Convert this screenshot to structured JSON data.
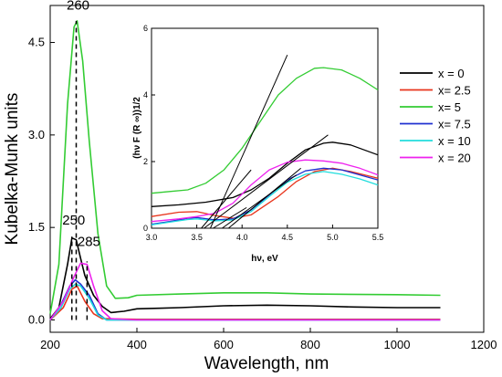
{
  "chart_data": [
    {
      "type": "line",
      "xlabel": "Wavelength, nm",
      "ylabel": "Kubelka-Munk units",
      "xlim": [
        200,
        1200
      ],
      "ylim": [
        -0.2,
        5.1
      ],
      "x_ticks": [
        "200",
        "400",
        "600",
        "800",
        "1000",
        "1200"
      ],
      "y_ticks": [
        "0.0",
        "1.5",
        "3.0",
        "4.5"
      ],
      "x_tick_values": [
        200,
        400,
        600,
        800,
        1000,
        1200
      ],
      "y_tick_values": [
        0,
        1.5,
        3.0,
        4.5
      ],
      "annotations": [
        {
          "text": "260",
          "x": 260,
          "y": 5.03,
          "line_from": 0,
          "line_to": 4.85
        },
        {
          "text": "250",
          "x": 250,
          "y": 1.55,
          "line_from": 0,
          "line_to": 1.35
        },
        {
          "text": "285",
          "x": 285,
          "y": 1.2,
          "line_from": 0,
          "line_to": 0.95
        }
      ],
      "legend": [
        "x = 0",
        "x= 2.5",
        "x= 5",
        "x= 7.5",
        "x = 10",
        "x = 20"
      ],
      "series": [
        {
          "name": "x = 0",
          "color": "#000000",
          "points": [
            [
              200,
              0.02
            ],
            [
              220,
              0.2
            ],
            [
              240,
              0.9
            ],
            [
              250,
              1.33
            ],
            [
              260,
              1.3
            ],
            [
              270,
              1.0
            ],
            [
              280,
              0.72
            ],
            [
              300,
              0.4
            ],
            [
              320,
              0.22
            ],
            [
              340,
              0.12
            ],
            [
              370,
              0.14
            ],
            [
              400,
              0.18
            ],
            [
              450,
              0.19
            ],
            [
              500,
              0.2
            ],
            [
              600,
              0.23
            ],
            [
              700,
              0.24
            ],
            [
              800,
              0.23
            ],
            [
              900,
              0.21
            ],
            [
              1000,
              0.2
            ],
            [
              1100,
              0.2
            ]
          ]
        },
        {
          "name": "x= 2.5",
          "color": "#e8341c",
          "points": [
            [
              200,
              0.0
            ],
            [
              230,
              0.2
            ],
            [
              250,
              0.5
            ],
            [
              262,
              0.55
            ],
            [
              280,
              0.3
            ],
            [
              300,
              0.1
            ],
            [
              320,
              0.02
            ],
            [
              400,
              0.01
            ],
            [
              800,
              0.01
            ],
            [
              1100,
              0.01
            ]
          ]
        },
        {
          "name": "x= 5",
          "color": "#33cc33",
          "points": [
            [
              200,
              0.1
            ],
            [
              220,
              0.9
            ],
            [
              240,
              3.5
            ],
            [
              255,
              4.75
            ],
            [
              262,
              4.85
            ],
            [
              275,
              4.2
            ],
            [
              290,
              2.9
            ],
            [
              310,
              1.4
            ],
            [
              330,
              0.55
            ],
            [
              350,
              0.35
            ],
            [
              380,
              0.36
            ],
            [
              400,
              0.4
            ],
            [
              500,
              0.42
            ],
            [
              600,
              0.44
            ],
            [
              700,
              0.44
            ],
            [
              800,
              0.42
            ],
            [
              1000,
              0.41
            ],
            [
              1100,
              0.4
            ]
          ]
        },
        {
          "name": "x= 7.5",
          "color": "#2030d0",
          "points": [
            [
              200,
              0.0
            ],
            [
              225,
              0.25
            ],
            [
              245,
              0.55
            ],
            [
              258,
              0.65
            ],
            [
              270,
              0.58
            ],
            [
              290,
              0.4
            ],
            [
              310,
              0.1
            ],
            [
              330,
              0.0
            ],
            [
              400,
              0.0
            ],
            [
              800,
              0.0
            ],
            [
              1100,
              0.0
            ]
          ]
        },
        {
          "name": "x = 10",
          "color": "#22dddd",
          "points": [
            [
              200,
              0.0
            ],
            [
              225,
              0.2
            ],
            [
              245,
              0.5
            ],
            [
              258,
              0.58
            ],
            [
              270,
              0.55
            ],
            [
              290,
              0.35
            ],
            [
              310,
              0.08
            ],
            [
              330,
              0.0
            ],
            [
              400,
              0.0
            ],
            [
              800,
              0.0
            ],
            [
              1100,
              0.0
            ]
          ]
        },
        {
          "name": "x = 20",
          "color": "#ee22ee",
          "points": [
            [
              200,
              0.0
            ],
            [
              230,
              0.3
            ],
            [
              255,
              0.7
            ],
            [
              270,
              0.92
            ],
            [
              285,
              0.9
            ],
            [
              300,
              0.55
            ],
            [
              320,
              0.15
            ],
            [
              340,
              0.02
            ],
            [
              400,
              0.0
            ],
            [
              800,
              0.0
            ],
            [
              1100,
              0.0
            ]
          ]
        }
      ]
    },
    {
      "type": "line",
      "title": "",
      "xlabel": "hν, eV",
      "ylabel": "(hν F (R ∞))1/2",
      "xlim": [
        3.0,
        5.5
      ],
      "ylim": [
        0,
        6
      ],
      "x_ticks": [
        "3.0",
        "3.5",
        "4.0",
        "4.5",
        "5.0",
        "5.5"
      ],
      "y_ticks": [
        "0",
        "2",
        "4",
        "6"
      ],
      "x_tick_values": [
        3.0,
        3.5,
        4.0,
        4.5,
        5.0,
        5.5
      ],
      "y_tick_values": [
        0,
        2,
        4,
        6
      ],
      "series": [
        {
          "name": "x = 0",
          "color": "#000000",
          "points": [
            [
              3.0,
              0.65
            ],
            [
              3.3,
              0.7
            ],
            [
              3.6,
              0.78
            ],
            [
              3.9,
              0.92
            ],
            [
              4.1,
              1.15
            ],
            [
              4.3,
              1.5
            ],
            [
              4.5,
              1.95
            ],
            [
              4.7,
              2.35
            ],
            [
              4.9,
              2.55
            ],
            [
              5.0,
              2.58
            ],
            [
              5.2,
              2.5
            ],
            [
              5.5,
              2.2
            ]
          ]
        },
        {
          "name": "x= 2.5",
          "color": "#e8341c",
          "points": [
            [
              3.0,
              0.35
            ],
            [
              3.3,
              0.48
            ],
            [
              3.5,
              0.5
            ],
            [
              3.7,
              0.38
            ],
            [
              3.9,
              0.3
            ],
            [
              4.1,
              0.4
            ],
            [
              4.4,
              0.95
            ],
            [
              4.6,
              1.4
            ],
            [
              4.8,
              1.7
            ],
            [
              5.0,
              1.8
            ],
            [
              5.2,
              1.7
            ],
            [
              5.5,
              1.5
            ]
          ]
        },
        {
          "name": "x= 5",
          "color": "#33cc33",
          "points": [
            [
              3.0,
              1.05
            ],
            [
              3.2,
              1.1
            ],
            [
              3.4,
              1.15
            ],
            [
              3.6,
              1.35
            ],
            [
              3.8,
              1.75
            ],
            [
              4.0,
              2.4
            ],
            [
              4.2,
              3.2
            ],
            [
              4.4,
              4.0
            ],
            [
              4.6,
              4.5
            ],
            [
              4.8,
              4.8
            ],
            [
              4.9,
              4.82
            ],
            [
              5.1,
              4.75
            ],
            [
              5.3,
              4.5
            ],
            [
              5.5,
              4.15
            ]
          ]
        },
        {
          "name": "x= 7.5",
          "color": "#2030d0",
          "points": [
            [
              3.0,
              0.12
            ],
            [
              3.2,
              0.2
            ],
            [
              3.4,
              0.3
            ],
            [
              3.5,
              0.32
            ],
            [
              3.7,
              0.25
            ],
            [
              3.9,
              0.28
            ],
            [
              4.1,
              0.55
            ],
            [
              4.3,
              1.0
            ],
            [
              4.5,
              1.45
            ],
            [
              4.7,
              1.72
            ],
            [
              4.9,
              1.8
            ],
            [
              5.1,
              1.75
            ],
            [
              5.3,
              1.6
            ],
            [
              5.5,
              1.45
            ]
          ]
        },
        {
          "name": "x = 10",
          "color": "#22dddd",
          "points": [
            [
              3.0,
              0.1
            ],
            [
              3.2,
              0.18
            ],
            [
              3.4,
              0.26
            ],
            [
              3.5,
              0.28
            ],
            [
              3.7,
              0.22
            ],
            [
              3.9,
              0.25
            ],
            [
              4.1,
              0.5
            ],
            [
              4.3,
              0.95
            ],
            [
              4.5,
              1.38
            ],
            [
              4.7,
              1.62
            ],
            [
              4.9,
              1.7
            ],
            [
              5.1,
              1.62
            ],
            [
              5.3,
              1.48
            ],
            [
              5.5,
              1.3
            ]
          ]
        },
        {
          "name": "x = 20",
          "color": "#ee22ee",
          "points": [
            [
              3.0,
              0.2
            ],
            [
              3.3,
              0.28
            ],
            [
              3.5,
              0.35
            ],
            [
              3.7,
              0.45
            ],
            [
              3.9,
              0.75
            ],
            [
              4.1,
              1.3
            ],
            [
              4.3,
              1.75
            ],
            [
              4.5,
              1.98
            ],
            [
              4.7,
              2.05
            ],
            [
              4.9,
              2.02
            ],
            [
              5.1,
              1.95
            ],
            [
              5.3,
              1.8
            ],
            [
              5.5,
              1.6
            ]
          ]
        }
      ],
      "tangents": [
        {
          "x1": 3.65,
          "y1": 0,
          "x2": 4.5,
          "y2": 5.2
        },
        {
          "x1": 3.58,
          "y1": 0,
          "x2": 4.95,
          "y2": 2.8
        },
        {
          "x1": 3.55,
          "y1": 0,
          "x2": 4.1,
          "y2": 1.75
        },
        {
          "x1": 3.85,
          "y1": 0,
          "x2": 4.65,
          "y2": 1.8
        },
        {
          "x1": 3.68,
          "y1": 0,
          "x2": 4.05,
          "y2": 0.62
        },
        {
          "x1": 3.78,
          "y1": 0,
          "x2": 4.6,
          "y2": 1.6
        }
      ]
    }
  ]
}
